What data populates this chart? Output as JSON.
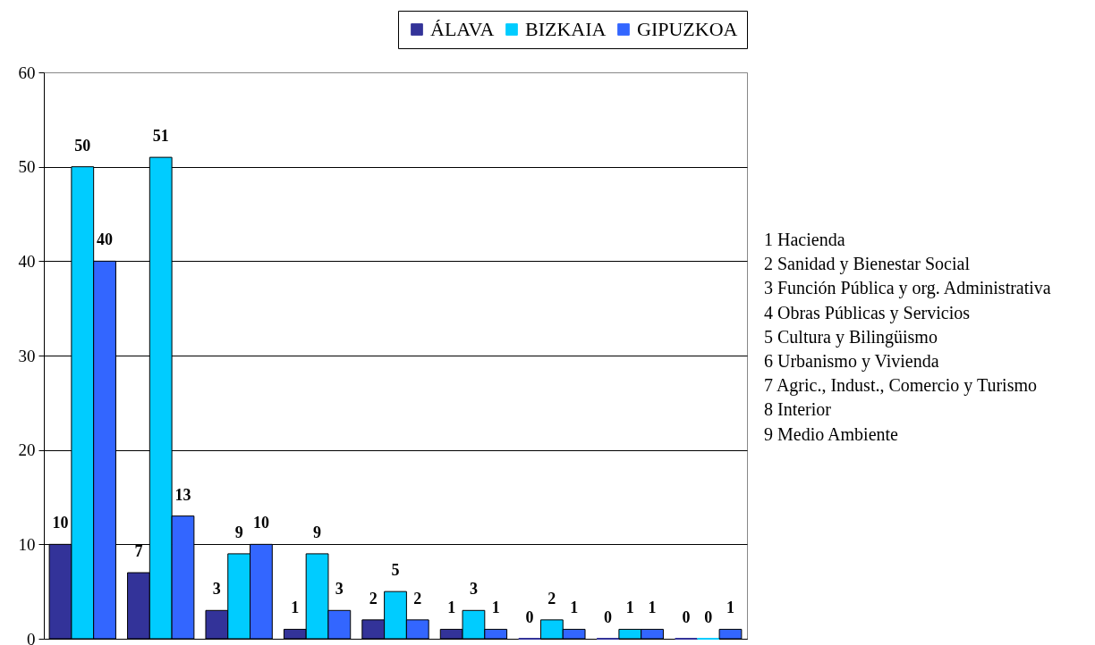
{
  "chart_data": {
    "type": "bar",
    "categories": [
      null,
      null,
      null,
      null,
      null,
      null,
      null,
      null,
      null
    ],
    "series": [
      {
        "name": "ÁLAVA",
        "color": "#333399",
        "values": [
          10,
          7,
          3,
          1,
          2,
          1,
          0,
          0,
          0
        ]
      },
      {
        "name": "BIZKAIA",
        "color": "#00ccff",
        "values": [
          50,
          51,
          9,
          9,
          5,
          3,
          2,
          1,
          0
        ]
      },
      {
        "name": "GIPUZKOA",
        "color": "#3366ff",
        "values": [
          40,
          13,
          10,
          3,
          2,
          1,
          1,
          1,
          1
        ]
      }
    ],
    "ylim": [
      0,
      60
    ],
    "yticks": [
      0,
      10,
      20,
      30,
      40,
      50,
      60
    ],
    "grid": "y",
    "legend": "top right",
    "data_labels": true,
    "tick_labels": "y",
    "annotations": [
      "1 Hacienda",
      "2 Sanidad y Bienestar Social",
      "3 Función Pública y org. Administrativa",
      "4 Obras Públicas y Servicios",
      "5 Cultura y Bilingüismo",
      "6 Urbanismo y Vivienda",
      "7 Agric., Indust., Comercio y Turismo",
      "8 Interior",
      "9 Medio Ambiente"
    ]
  }
}
